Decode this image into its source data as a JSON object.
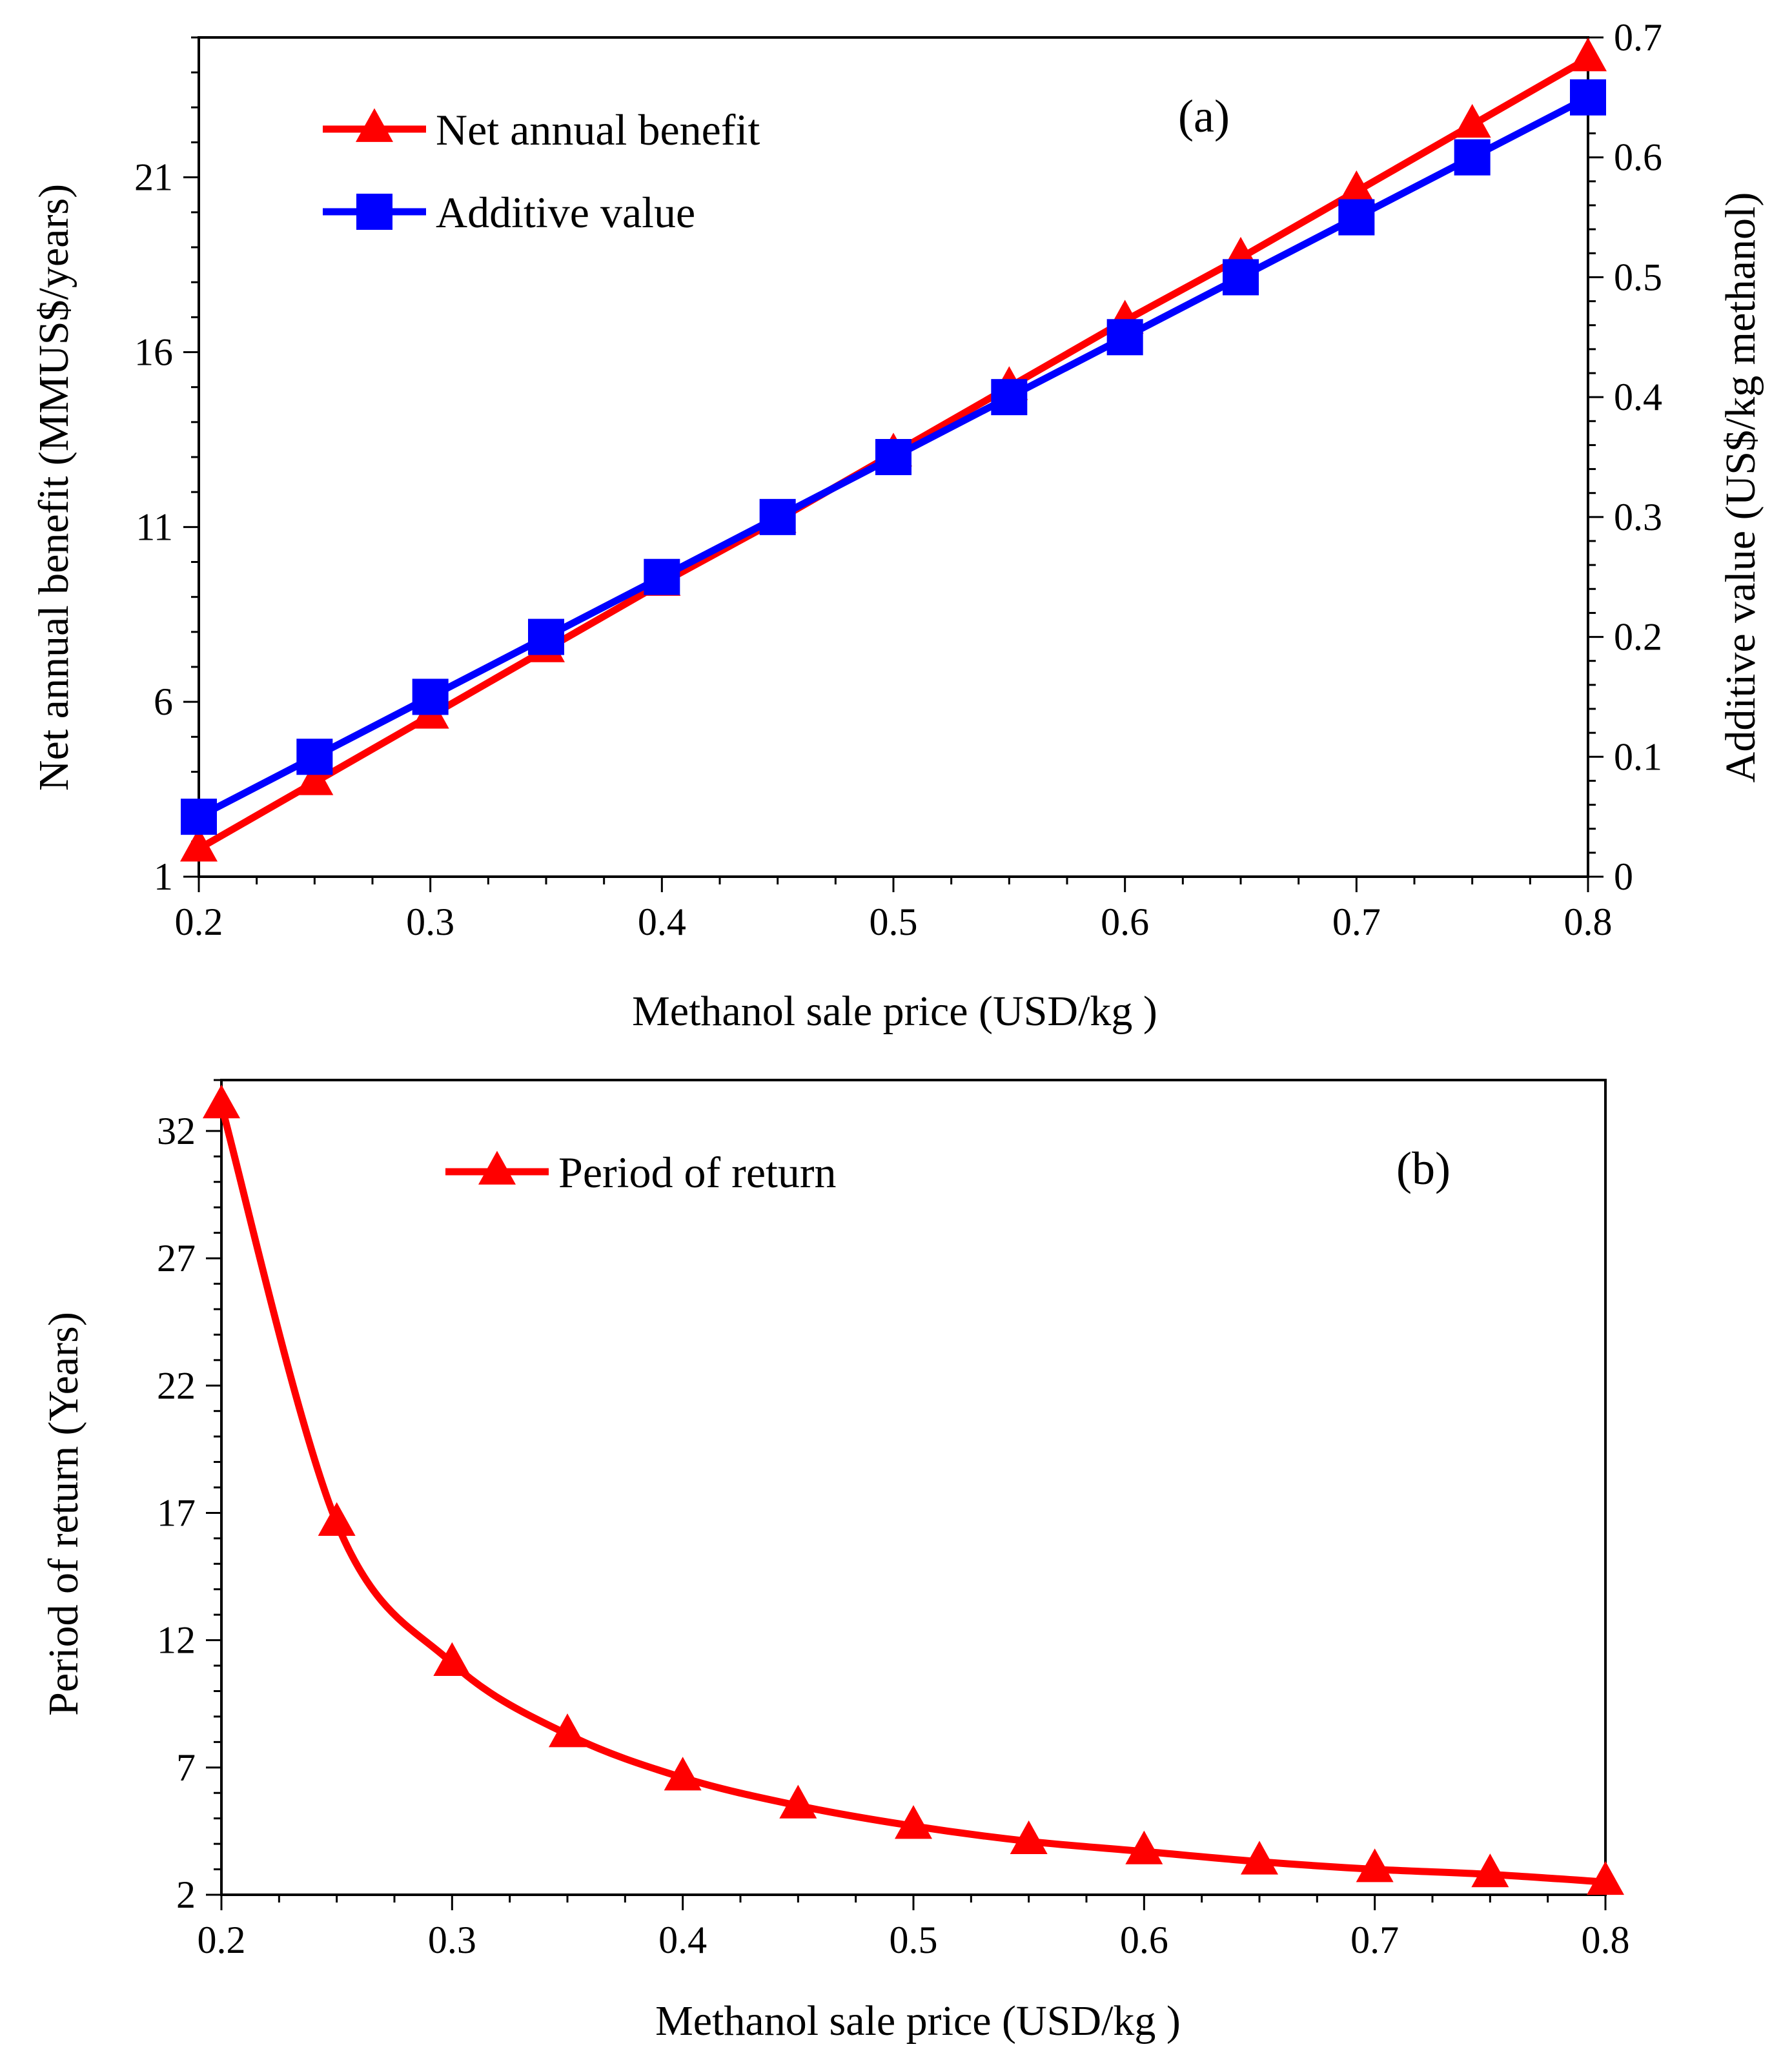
{
  "chart_data": [
    {
      "id": "a",
      "type": "line",
      "panel_label": "(a)",
      "xlabel": "Methanol sale price (USD/kg )",
      "ylabel": "Net annual benefit (MMUS$/years)",
      "y2label": "Additive value (US$/kg methanol)",
      "xlim": [
        0.2,
        0.8
      ],
      "ylim": [
        1,
        25
      ],
      "y2lim": [
        0,
        0.7
      ],
      "x_ticks": [
        "0.2",
        "0.3",
        "0.4",
        "0.5",
        "0.6",
        "0.7",
        "0.8"
      ],
      "y_ticks": [
        "1",
        "6",
        "11",
        "16",
        "21"
      ],
      "y2_ticks": [
        "0",
        "0.1",
        "0.2",
        "0.3",
        "0.4",
        "0.5",
        "0.6",
        "0.7"
      ],
      "x": [
        0.2,
        0.25,
        0.3,
        0.35,
        0.4,
        0.45,
        0.5,
        0.55,
        0.6,
        0.65,
        0.7,
        0.75,
        0.8
      ],
      "legend_position": "top-left",
      "grid": false,
      "series": [
        {
          "name": "Net annual benefit",
          "axis": "left",
          "marker": "triangle",
          "color": "#ff0000",
          "values": [
            1.8,
            3.7,
            5.6,
            7.5,
            9.4,
            11.2,
            13.1,
            15.0,
            16.9,
            18.7,
            20.6,
            22.5,
            24.4
          ]
        },
        {
          "name": "Additive value",
          "axis": "right",
          "marker": "square",
          "color": "#0000ff",
          "values": [
            0.05,
            0.1,
            0.15,
            0.2,
            0.25,
            0.3,
            0.35,
            0.4,
            0.45,
            0.5,
            0.55,
            0.6,
            0.65
          ]
        }
      ]
    },
    {
      "id": "b",
      "type": "line",
      "panel_label": "(b)",
      "xlabel": "Methanol sale price (USD/kg )",
      "ylabel": "Period of return (Years)",
      "xlim": [
        0.2,
        0.8
      ],
      "ylim": [
        2,
        34
      ],
      "x_ticks": [
        "0.2",
        "0.3",
        "0.4",
        "0.5",
        "0.6",
        "0.7",
        "0.8"
      ],
      "y_ticks": [
        "2",
        "7",
        "12",
        "17",
        "22",
        "27",
        "32"
      ],
      "x": [
        0.2,
        0.25,
        0.3,
        0.35,
        0.4,
        0.45,
        0.5,
        0.55,
        0.6,
        0.65,
        0.7,
        0.75,
        0.8
      ],
      "legend_position": "top-left",
      "grid": false,
      "series": [
        {
          "name": "Period of return",
          "axis": "left",
          "marker": "triangle",
          "color": "#ff0000",
          "values": [
            33.0,
            16.6,
            11.1,
            8.3,
            6.6,
            5.5,
            4.7,
            4.1,
            3.7,
            3.3,
            3.0,
            2.8,
            2.5
          ]
        }
      ]
    }
  ]
}
